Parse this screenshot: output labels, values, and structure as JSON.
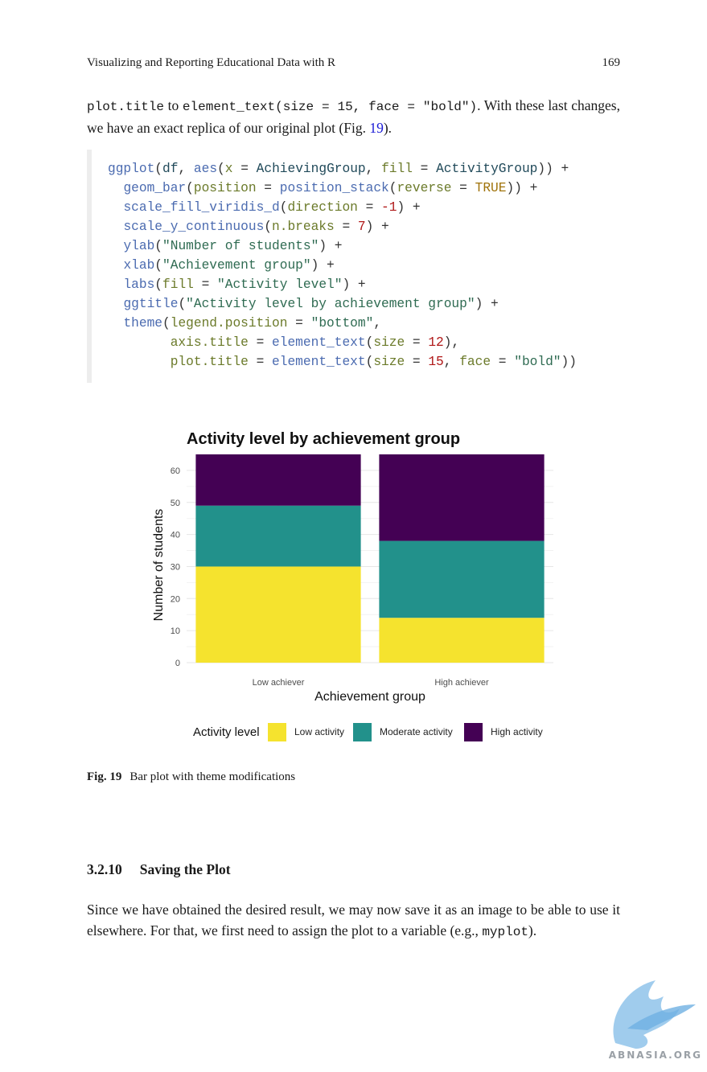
{
  "header": {
    "running_title": "Visualizing and Reporting Educational Data with R",
    "page_number": "169"
  },
  "intro": {
    "code1": "plot.title",
    "t1": " to ",
    "code2": "element_text(size = 15, face = \"bold\")",
    "t2": ". With these last changes, we have an exact replica of our original plot (Fig. ",
    "fig_ref": "19",
    "t3": ")."
  },
  "code_lines": [
    [
      [
        "fn",
        "ggplot"
      ],
      [
        "p",
        "("
      ],
      [
        "var",
        "df"
      ],
      [
        "p",
        ", "
      ],
      [
        "fn",
        "aes"
      ],
      [
        "p",
        "("
      ],
      [
        "arg",
        "x"
      ],
      [
        "p",
        " = "
      ],
      [
        "var",
        "AchievingGroup"
      ],
      [
        "p",
        ", "
      ],
      [
        "arg",
        "fill"
      ],
      [
        "p",
        " = "
      ],
      [
        "var",
        "ActivityGroup"
      ],
      [
        "p",
        ")) +"
      ]
    ],
    [
      [
        "p",
        "  "
      ],
      [
        "fn",
        "geom_bar"
      ],
      [
        "p",
        "("
      ],
      [
        "arg",
        "position"
      ],
      [
        "p",
        " = "
      ],
      [
        "fn",
        "position_stack"
      ],
      [
        "p",
        "("
      ],
      [
        "arg",
        "reverse"
      ],
      [
        "p",
        " = "
      ],
      [
        "kw",
        "TRUE"
      ],
      [
        "p",
        ")) +"
      ]
    ],
    [
      [
        "p",
        "  "
      ],
      [
        "fn",
        "scale_fill_viridis_d"
      ],
      [
        "p",
        "("
      ],
      [
        "arg",
        "direction"
      ],
      [
        "p",
        " = "
      ],
      [
        "num",
        "-1"
      ],
      [
        "p",
        ") +"
      ]
    ],
    [
      [
        "p",
        "  "
      ],
      [
        "fn",
        "scale_y_continuous"
      ],
      [
        "p",
        "("
      ],
      [
        "arg",
        "n.breaks"
      ],
      [
        "p",
        " = "
      ],
      [
        "num",
        "7"
      ],
      [
        "p",
        ") +"
      ]
    ],
    [
      [
        "p",
        "  "
      ],
      [
        "fn",
        "ylab"
      ],
      [
        "p",
        "("
      ],
      [
        "str",
        "\"Number of students\""
      ],
      [
        "p",
        ") +"
      ]
    ],
    [
      [
        "p",
        "  "
      ],
      [
        "fn",
        "xlab"
      ],
      [
        "p",
        "("
      ],
      [
        "str",
        "\"Achievement group\""
      ],
      [
        "p",
        ") +"
      ]
    ],
    [
      [
        "p",
        "  "
      ],
      [
        "fn",
        "labs"
      ],
      [
        "p",
        "("
      ],
      [
        "arg",
        "fill"
      ],
      [
        "p",
        " = "
      ],
      [
        "str",
        "\"Activity level\""
      ],
      [
        "p",
        ") +"
      ]
    ],
    [
      [
        "p",
        "  "
      ],
      [
        "fn",
        "ggtitle"
      ],
      [
        "p",
        "("
      ],
      [
        "str",
        "\"Activity level by achievement group\""
      ],
      [
        "p",
        ") +"
      ]
    ],
    [
      [
        "p",
        "  "
      ],
      [
        "fn",
        "theme"
      ],
      [
        "p",
        "("
      ],
      [
        "arg",
        "legend.position"
      ],
      [
        "p",
        " = "
      ],
      [
        "str",
        "\"bottom\""
      ],
      [
        "p",
        ","
      ]
    ],
    [
      [
        "p",
        "        "
      ],
      [
        "arg",
        "axis.title"
      ],
      [
        "p",
        " = "
      ],
      [
        "fn",
        "element_text"
      ],
      [
        "p",
        "("
      ],
      [
        "arg",
        "size"
      ],
      [
        "p",
        " = "
      ],
      [
        "num",
        "12"
      ],
      [
        "p",
        "),"
      ]
    ],
    [
      [
        "p",
        "        "
      ],
      [
        "arg",
        "plot.title"
      ],
      [
        "p",
        " = "
      ],
      [
        "fn",
        "element_text"
      ],
      [
        "p",
        "("
      ],
      [
        "arg",
        "size"
      ],
      [
        "p",
        " = "
      ],
      [
        "num",
        "15"
      ],
      [
        "p",
        ", "
      ],
      [
        "arg",
        "face"
      ],
      [
        "p",
        " = "
      ],
      [
        "str",
        "\"bold\""
      ],
      [
        "p",
        "))"
      ]
    ]
  ],
  "chart_data": {
    "type": "bar",
    "stacked": true,
    "title": "Activity level by achievement group",
    "xlabel": "Achievement group",
    "ylabel": "Number of students",
    "categories": [
      "Low achiever",
      "High achiever"
    ],
    "series": [
      {
        "name": "Low activity",
        "values": [
          30,
          14
        ],
        "color": "#F5E32E"
      },
      {
        "name": "Moderate activity",
        "values": [
          19,
          24
        ],
        "color": "#22918B"
      },
      {
        "name": "High activity",
        "values": [
          16,
          27
        ],
        "color": "#440154"
      }
    ],
    "yticks": [
      0,
      10,
      20,
      30,
      40,
      50,
      60
    ],
    "ylim": [
      0,
      65
    ],
    "legend_title": "Activity level",
    "legend_position": "bottom",
    "grid": true
  },
  "caption": {
    "label": "Fig. 19",
    "text": "Bar plot with theme modifications"
  },
  "section": {
    "number": "3.2.10",
    "title": "Saving the Plot"
  },
  "body": {
    "t1": "Since we have obtained the desired result, we may now save it as an image to be able to use it elsewhere. For that, we first need to assign the plot to a variable (e.g., ",
    "code": "myplot",
    "t2": ")."
  },
  "watermark": {
    "text": "ABNASIA.ORG"
  }
}
